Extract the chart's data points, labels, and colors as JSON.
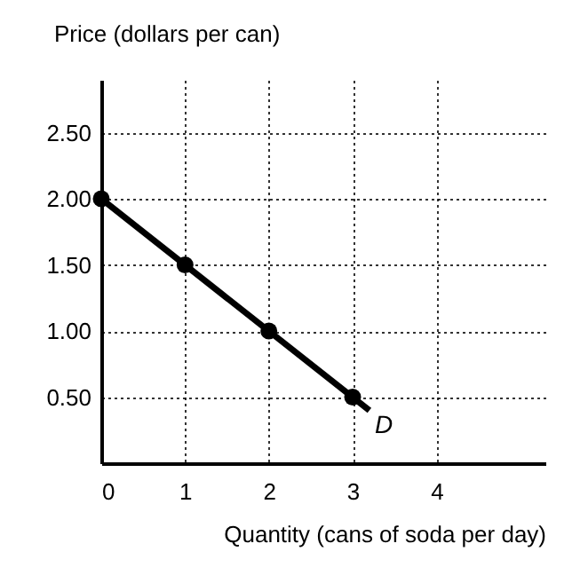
{
  "chart_data": {
    "type": "line",
    "xlabel": "Quantity (cans of soda per day)",
    "ylabel": "Price (dollars per can)",
    "xlim": [
      0,
      5.3
    ],
    "ylim": [
      0,
      2.9
    ],
    "xticks": [
      0,
      1,
      2,
      3,
      4
    ],
    "yticks": [
      {
        "value": 0.5,
        "label": "0.50"
      },
      {
        "value": 1,
        "label": "1.00"
      },
      {
        "value": 1.5,
        "label": "1.50"
      },
      {
        "value": 2,
        "label": "2.00"
      },
      {
        "value": 2.5,
        "label": "2.50"
      }
    ],
    "grid": true,
    "series": [
      {
        "type": "line",
        "color": "#000000",
        "line_style": "solid",
        "x": [
          0,
          3.2
        ],
        "values": [
          2,
          0.4
        ]
      },
      {
        "type": "scatter",
        "color": "#000000",
        "marker": "circle",
        "x": [
          0,
          1,
          2,
          3
        ],
        "values": [
          2,
          1.5,
          1,
          0.5
        ]
      }
    ],
    "annotations": [
      "D"
    ]
  }
}
